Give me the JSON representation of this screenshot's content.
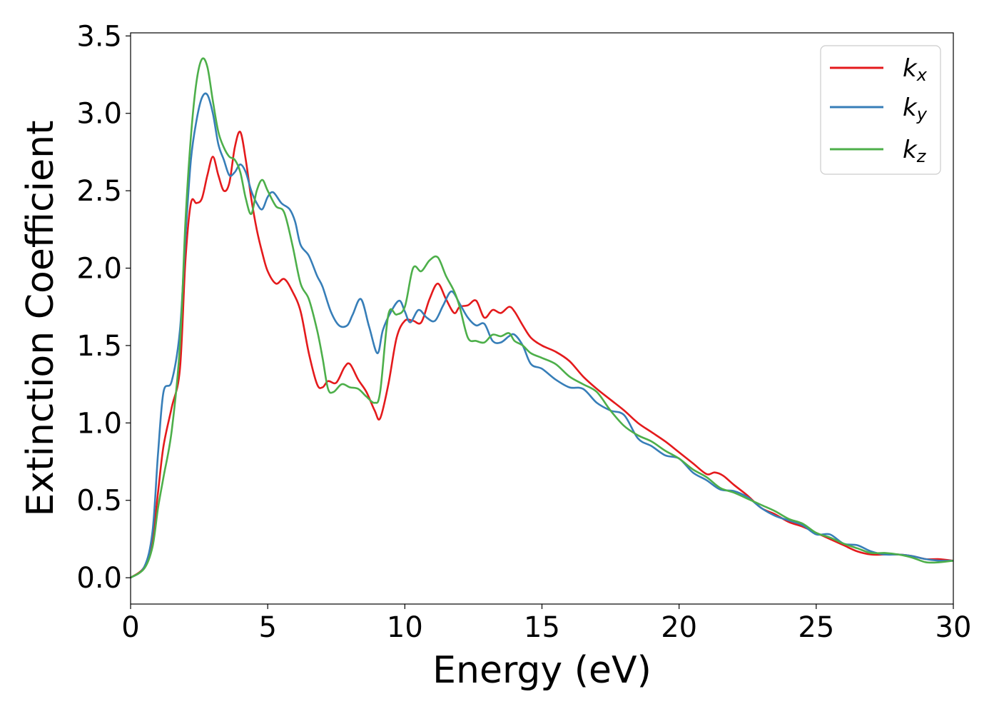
{
  "chart_data": {
    "type": "line",
    "xlabel": "Energy (eV)",
    "ylabel": "Extinction Coefficient",
    "xlim": [
      0,
      30
    ],
    "ylim": [
      -0.17,
      3.52
    ],
    "xticks": [
      0,
      5,
      10,
      15,
      20,
      25,
      30
    ],
    "yticks": [
      0.0,
      0.5,
      1.0,
      1.5,
      2.0,
      2.5,
      3.0,
      3.5
    ],
    "xtick_labels": [
      "0",
      "5",
      "10",
      "15",
      "20",
      "25",
      "30"
    ],
    "ytick_labels": [
      "0.0",
      "0.5",
      "1.0",
      "1.5",
      "2.0",
      "2.5",
      "3.0",
      "3.5"
    ],
    "grid": false,
    "legend_position": "top-right",
    "series": [
      {
        "name": "k_x",
        "legend_base": "k",
        "legend_sub": "x",
        "color": "#e41a1c",
        "x": [
          0.0,
          0.5,
          0.8,
          1.0,
          1.2,
          1.5,
          1.8,
          2.0,
          2.2,
          2.4,
          2.6,
          2.8,
          3.0,
          3.2,
          3.4,
          3.6,
          3.8,
          4.0,
          4.2,
          4.4,
          4.6,
          4.8,
          5.0,
          5.3,
          5.6,
          5.9,
          6.2,
          6.5,
          6.8,
          7.0,
          7.2,
          7.5,
          7.8,
          8.0,
          8.3,
          8.6,
          8.9,
          9.1,
          9.4,
          9.7,
          10.0,
          10.3,
          10.6,
          10.9,
          11.2,
          11.5,
          11.8,
          12.0,
          12.3,
          12.6,
          12.9,
          13.2,
          13.5,
          13.8,
          14.0,
          14.3,
          14.6,
          15.0,
          15.5,
          16.0,
          16.5,
          17.0,
          17.5,
          18.0,
          18.5,
          19.0,
          19.5,
          20.0,
          20.5,
          21.0,
          21.3,
          21.6,
          22.0,
          22.5,
          23.0,
          23.5,
          24.0,
          24.5,
          25.0,
          25.5,
          26.0,
          26.5,
          27.0,
          27.5,
          28.0,
          28.5,
          29.0,
          29.5,
          30.0
        ],
        "y": [
          0.0,
          0.07,
          0.25,
          0.55,
          0.85,
          1.1,
          1.35,
          2.05,
          2.42,
          2.42,
          2.45,
          2.6,
          2.72,
          2.6,
          2.5,
          2.55,
          2.78,
          2.88,
          2.7,
          2.45,
          2.25,
          2.1,
          1.98,
          1.9,
          1.93,
          1.85,
          1.72,
          1.45,
          1.25,
          1.23,
          1.27,
          1.26,
          1.36,
          1.38,
          1.28,
          1.2,
          1.08,
          1.03,
          1.25,
          1.55,
          1.66,
          1.66,
          1.65,
          1.8,
          1.9,
          1.8,
          1.71,
          1.75,
          1.76,
          1.79,
          1.68,
          1.73,
          1.71,
          1.75,
          1.72,
          1.63,
          1.55,
          1.5,
          1.46,
          1.4,
          1.3,
          1.22,
          1.15,
          1.08,
          1.0,
          0.94,
          0.88,
          0.81,
          0.74,
          0.67,
          0.68,
          0.66,
          0.6,
          0.53,
          0.45,
          0.41,
          0.36,
          0.33,
          0.29,
          0.25,
          0.21,
          0.17,
          0.15,
          0.15,
          0.15,
          0.14,
          0.12,
          0.12,
          0.11
        ]
      },
      {
        "name": "k_y",
        "legend_base": "k",
        "legend_sub": "y",
        "color": "#377eb8",
        "x": [
          0.0,
          0.5,
          0.8,
          1.0,
          1.2,
          1.5,
          1.8,
          2.0,
          2.2,
          2.4,
          2.6,
          2.8,
          3.0,
          3.2,
          3.4,
          3.6,
          3.8,
          4.0,
          4.2,
          4.4,
          4.6,
          4.8,
          5.0,
          5.2,
          5.5,
          5.8,
          6.0,
          6.2,
          6.5,
          6.8,
          7.0,
          7.3,
          7.6,
          7.9,
          8.1,
          8.4,
          8.7,
          9.0,
          9.2,
          9.5,
          9.8,
          10.0,
          10.2,
          10.5,
          10.8,
          11.1,
          11.4,
          11.7,
          12.0,
          12.3,
          12.6,
          12.9,
          13.2,
          13.5,
          13.8,
          14.0,
          14.3,
          14.6,
          15.0,
          15.5,
          16.0,
          16.5,
          17.0,
          17.5,
          18.0,
          18.5,
          19.0,
          19.5,
          20.0,
          20.5,
          21.0,
          21.5,
          22.0,
          22.5,
          23.0,
          23.5,
          24.0,
          24.5,
          25.0,
          25.5,
          26.0,
          26.5,
          27.0,
          27.5,
          28.0,
          28.5,
          29.0,
          29.5,
          30.0
        ],
        "y": [
          0.0,
          0.07,
          0.3,
          0.8,
          1.2,
          1.27,
          1.6,
          2.2,
          2.7,
          2.95,
          3.1,
          3.12,
          3.0,
          2.8,
          2.7,
          2.6,
          2.62,
          2.67,
          2.62,
          2.5,
          2.42,
          2.38,
          2.46,
          2.49,
          2.42,
          2.38,
          2.3,
          2.15,
          2.08,
          1.95,
          1.88,
          1.72,
          1.63,
          1.63,
          1.7,
          1.8,
          1.62,
          1.45,
          1.6,
          1.72,
          1.79,
          1.72,
          1.65,
          1.73,
          1.68,
          1.66,
          1.76,
          1.85,
          1.77,
          1.68,
          1.63,
          1.64,
          1.53,
          1.52,
          1.56,
          1.57,
          1.5,
          1.38,
          1.35,
          1.28,
          1.23,
          1.22,
          1.13,
          1.08,
          1.05,
          0.9,
          0.85,
          0.79,
          0.77,
          0.68,
          0.63,
          0.57,
          0.56,
          0.52,
          0.45,
          0.4,
          0.37,
          0.34,
          0.28,
          0.28,
          0.22,
          0.21,
          0.17,
          0.15,
          0.15,
          0.14,
          0.12,
          0.11,
          0.11
        ]
      },
      {
        "name": "k_z",
        "legend_base": "k",
        "legend_sub": "z",
        "color": "#4daf4a",
        "x": [
          0.0,
          0.5,
          0.8,
          1.0,
          1.2,
          1.5,
          1.8,
          2.0,
          2.2,
          2.4,
          2.6,
          2.8,
          3.0,
          3.2,
          3.4,
          3.6,
          3.8,
          4.0,
          4.2,
          4.4,
          4.6,
          4.8,
          5.0,
          5.3,
          5.6,
          5.9,
          6.2,
          6.5,
          6.8,
          7.0,
          7.2,
          7.4,
          7.7,
          8.0,
          8.3,
          8.6,
          8.9,
          9.1,
          9.4,
          9.7,
          10.0,
          10.3,
          10.6,
          10.9,
          11.2,
          11.5,
          11.8,
          12.0,
          12.3,
          12.6,
          12.9,
          13.2,
          13.5,
          13.8,
          14.0,
          14.3,
          14.6,
          15.0,
          15.5,
          16.0,
          16.5,
          17.0,
          17.5,
          18.0,
          18.5,
          19.0,
          19.5,
          20.0,
          20.5,
          21.0,
          21.5,
          22.0,
          22.5,
          23.0,
          23.5,
          24.0,
          24.5,
          25.0,
          25.5,
          26.0,
          26.5,
          27.0,
          27.5,
          28.0,
          28.5,
          29.0,
          29.5,
          30.0
        ],
        "y": [
          0.0,
          0.06,
          0.2,
          0.45,
          0.65,
          0.95,
          1.5,
          2.3,
          2.85,
          3.2,
          3.35,
          3.3,
          3.08,
          2.88,
          2.78,
          2.72,
          2.7,
          2.62,
          2.45,
          2.35,
          2.5,
          2.57,
          2.5,
          2.4,
          2.36,
          2.15,
          1.9,
          1.8,
          1.6,
          1.42,
          1.22,
          1.2,
          1.25,
          1.23,
          1.22,
          1.17,
          1.13,
          1.2,
          1.7,
          1.7,
          1.75,
          2.0,
          1.98,
          2.05,
          2.07,
          1.95,
          1.85,
          1.75,
          1.55,
          1.53,
          1.52,
          1.57,
          1.56,
          1.58,
          1.53,
          1.5,
          1.45,
          1.42,
          1.38,
          1.3,
          1.25,
          1.2,
          1.08,
          0.98,
          0.92,
          0.88,
          0.82,
          0.77,
          0.7,
          0.65,
          0.58,
          0.55,
          0.51,
          0.47,
          0.43,
          0.38,
          0.35,
          0.29,
          0.26,
          0.22,
          0.19,
          0.16,
          0.16,
          0.15,
          0.13,
          0.1,
          0.1,
          0.11
        ]
      }
    ]
  }
}
